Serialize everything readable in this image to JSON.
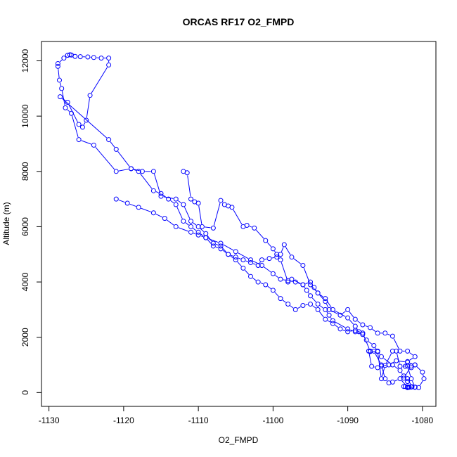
{
  "chart_data": {
    "type": "line",
    "title": "ORCAS RF17 O2_FMPD",
    "xlabel": "O2_FMPD",
    "ylabel": "Altitude (m)",
    "xlim": [
      -1131,
      -1078.2
    ],
    "ylim": [
      -500,
      12700
    ],
    "xticks": [
      -1130,
      -1120,
      -1110,
      -1100,
      -1090,
      -1080
    ],
    "yticks": [
      0,
      2000,
      4000,
      6000,
      8000,
      10000,
      12000
    ],
    "grid": false,
    "markers": "open-circle",
    "color": "#0000ff",
    "series": [
      {
        "x": [
          -1081.8,
          -1082.0,
          -1081.5,
          -1082.3,
          -1081.8,
          -1081.4,
          -1082.0,
          -1082.5,
          -1081.5,
          -1081.0,
          -1080.0,
          -1079.8,
          -1080.5,
          -1081.0,
          -1081.5,
          -1082.0,
          -1083.0,
          -1083.5,
          -1084.0,
          -1085.0,
          -1085.5,
          -1086.0,
          -1087.0,
          -1088.0,
          -1089.0,
          -1090.0,
          -1091.0,
          -1092.0,
          -1093.0,
          -1094.0,
          -1095.0,
          -1096.0,
          -1097.0,
          -1098.0,
          -1099.0,
          -1100.0,
          -1101.0,
          -1102.0,
          -1103.0,
          -1104.0,
          -1105.0,
          -1106.0,
          -1107.0,
          -1108.0,
          -1109.0,
          -1110.0,
          -1111.0,
          -1112.0,
          -1113.0,
          -1114.0,
          -1115.0,
          -1116.0,
          -1118.0,
          -1119.0,
          -1121.0,
          -1124.0,
          -1126.0,
          -1127.0,
          -1127.8,
          -1128.3,
          -1128.6,
          -1128.8,
          -1128.8,
          -1128.0,
          -1127.5,
          -1127.2,
          -1127.0,
          -1126.5,
          -1125.8,
          -1124.8,
          -1124.0,
          -1123.0,
          -1122.0,
          -1122.0,
          -1124.5,
          -1125.0,
          -1125.5,
          -1126.0,
          -1127.5,
          -1128.5,
          -1122.0,
          -1121.0,
          -1119.0,
          -1117.5,
          -1116.0,
          -1115.0,
          -1113.0,
          -1112.0,
          -1111.0,
          -1110.0,
          -1109.0,
          -1108.0,
          -1107.0,
          -1106.0,
          -1105.0,
          -1104.0,
          -1103.0,
          -1102.0,
          -1101.5,
          -1100.5,
          -1099.5,
          -1099.0,
          -1098.5,
          -1097.5,
          -1096.0,
          -1095.0,
          -1094.0,
          -1093.0,
          -1092.5,
          -1091.0,
          -1090.0,
          -1089.0,
          -1088.0,
          -1087.0,
          -1086.0,
          -1085.0,
          -1084.0,
          -1083.0,
          -1082.0,
          -1081.0,
          -1082.0,
          -1082.3,
          -1081.5,
          -1081.0,
          -1082.0,
          -1083.5,
          -1084.5,
          -1085.5,
          -1086.0,
          -1086.8,
          -1087.2,
          -1087.0,
          -1086.5,
          -1085.5,
          -1085.0,
          -1084.5,
          -1084.0,
          -1083.0,
          -1082.0,
          -1081.5,
          -1081.0,
          -1082.0,
          -1082.5,
          -1081.8,
          -1082.0
        ],
        "y": [
          200,
          180,
          200,
          220,
          190,
          210,
          500,
          520,
          960,
          1000,
          740,
          500,
          180,
          200,
          500,
          960,
          950,
          1500,
          1500,
          980,
          500,
          1480,
          1500,
          2150,
          2250,
          2200,
          2300,
          2500,
          2650,
          3000,
          3200,
          3150,
          3000,
          3200,
          3400,
          3700,
          3900,
          4000,
          4200,
          4500,
          4800,
          5000,
          5200,
          5300,
          5600,
          5800,
          6000,
          6200,
          6800,
          7000,
          7200,
          7300,
          8000,
          8100,
          8000,
          8950,
          9150,
          10100,
          10300,
          11000,
          11300,
          11800,
          11900,
          12100,
          12200,
          12220,
          12210,
          12160,
          12150,
          12140,
          12120,
          12100,
          12100,
          11850,
          10750,
          9850,
          9600,
          9700,
          10500,
          10700,
          9150,
          8800,
          8100,
          8000,
          8000,
          7100,
          7000,
          6800,
          6200,
          6000,
          5750,
          5400,
          5300,
          5000,
          4900,
          4800,
          4700,
          4600,
          4800,
          4850,
          4900,
          5000,
          5350,
          4900,
          4600,
          3900,
          3600,
          3300,
          3000,
          2800,
          3000,
          2650,
          2450,
          2350,
          2150,
          2150,
          2040,
          1500,
          1500,
          1300,
          1120,
          950,
          900,
          1000,
          1100,
          1150,
          1000,
          960,
          900,
          950,
          1500,
          1480,
          1500,
          1000,
          500,
          350,
          380,
          500,
          200,
          210,
          190,
          200,
          220,
          200,
          180
        ]
      },
      {
        "x": [
          -1121.0,
          -1119.5,
          -1118.0,
          -1116.0,
          -1114.5,
          -1113.0,
          -1111.0,
          -1110.0,
          -1109.0,
          -1107.0,
          -1105.0,
          -1103.0,
          -1101.5,
          -1100.0,
          -1099.0,
          -1098.0,
          -1097.0,
          -1096.0,
          -1095.5,
          -1095.0,
          -1094.0,
          -1093.0,
          -1092.5,
          -1092.0,
          -1090.0,
          -1089.0,
          -1088.0,
          -1087.5,
          -1086.5,
          -1086.0,
          -1085.5,
          -1084.0,
          -1083.0,
          -1082.5,
          -1082.0
        ],
        "y": [
          7000,
          6850,
          6700,
          6500,
          6300,
          6000,
          5800,
          5700,
          5600,
          5400,
          5100,
          4800,
          4600,
          4300,
          4100,
          4050,
          4000,
          3900,
          3700,
          3500,
          3200,
          3000,
          2800,
          2600,
          2300,
          2200,
          2100,
          1900,
          1700,
          1500,
          1300,
          1000,
          800,
          600,
          400
        ]
      },
      {
        "x": [
          -1112.0,
          -1111.5,
          -1111.0,
          -1110.5,
          -1110.0,
          -1109.5,
          -1108.0,
          -1107.0,
          -1106.5,
          -1106.0,
          -1105.5,
          -1104.0,
          -1103.5,
          -1102.5,
          -1101.0,
          -1100.0,
          -1099.5,
          -1099.0,
          -1098.0,
          -1097.5,
          -1096.0,
          -1095.0,
          -1094.5,
          -1094.0,
          -1093.0,
          -1092.0,
          -1090.0,
          -1089.0,
          -1088.5,
          -1088.0
        ],
        "y": [
          8000,
          7950,
          7000,
          6900,
          6850,
          6000,
          5950,
          6950,
          6800,
          6750,
          6700,
          6000,
          6050,
          5950,
          5500,
          5200,
          5000,
          4800,
          4000,
          4100,
          3900,
          4000,
          3800,
          3600,
          3400,
          3000,
          2700,
          2400,
          2200,
          2150
        ]
      }
    ]
  }
}
